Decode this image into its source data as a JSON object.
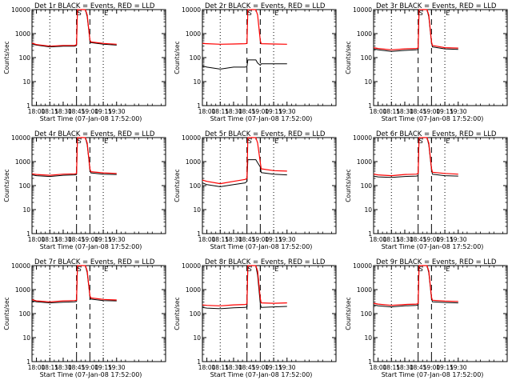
{
  "chart_data": [
    {
      "type": "line",
      "title": "Det 1r BLACK = Events, RED = LLD",
      "xlabel": "Start Time (07-Jan-08 17:52:00)",
      "ylabel": "Counts/sec",
      "ylog": true,
      "xlim": [
        -5,
        145
      ],
      "ylim": [
        1,
        10000
      ],
      "xticks": [
        0,
        15,
        30,
        45,
        60,
        75,
        90
      ],
      "xtick_labels": [
        "18:00",
        "18:15",
        "18:30",
        "18:45",
        "19:00",
        "19:15",
        "19:30"
      ],
      "yticks": [
        1,
        10,
        100,
        1000,
        10000
      ],
      "ytick_labels": [
        "1",
        "10",
        "100",
        "1000",
        "10000"
      ],
      "dotted_x": [
        15,
        75
      ],
      "dashed_x": [
        45,
        60
      ],
      "markers": [
        {
          "x": 45,
          "label": "S"
        },
        {
          "x": 75,
          "label": "E"
        }
      ],
      "x": [
        -5,
        0,
        15,
        30,
        43,
        45,
        46,
        55,
        57,
        60,
        61,
        75,
        90
      ],
      "series": [
        {
          "color": "#000000",
          "values": [
            370,
            330,
            280,
            300,
            300,
            320,
            10000,
            10000,
            5000,
            500,
            420,
            360,
            330
          ]
        },
        {
          "color": "#ff0000",
          "values": [
            400,
            350,
            300,
            320,
            320,
            350,
            10000,
            10000,
            6000,
            550,
            450,
            390,
            360
          ]
        }
      ]
    },
    {
      "type": "line",
      "title": "Det 2r BLACK = Events, RED = LLD",
      "xlabel": "Start Time (07-Jan-08 17:52:00)",
      "ylabel": "Counts/sec",
      "ylog": true,
      "xlim": [
        -5,
        145
      ],
      "ylim": [
        1,
        10000
      ],
      "xticks": [
        0,
        15,
        30,
        45,
        60,
        75,
        90
      ],
      "xtick_labels": [
        "18:00",
        "18:15",
        "18:30",
        "18:45",
        "19:00",
        "19:15",
        "19:30"
      ],
      "yticks": [
        1,
        10,
        100,
        1000,
        10000
      ],
      "ytick_labels": [
        "1",
        "10",
        "100",
        "1000",
        "10000"
      ],
      "dotted_x": [
        15,
        75
      ],
      "dashed_x": [
        45,
        60
      ],
      "markers": [
        {
          "x": 45,
          "label": "S"
        },
        {
          "x": 75,
          "label": "E"
        }
      ],
      "x": [
        -5,
        0,
        15,
        30,
        43,
        45,
        46,
        55,
        57,
        60,
        61,
        75,
        90
      ],
      "series": [
        {
          "color": "#000000",
          "values": [
            45,
            40,
            33,
            40,
            40,
            42,
            80,
            80,
            60,
            48,
            55,
            55,
            55
          ]
        },
        {
          "color": "#ff0000",
          "values": [
            390,
            380,
            360,
            370,
            380,
            390,
            10000,
            10000,
            6000,
            500,
            380,
            370,
            360
          ]
        }
      ]
    },
    {
      "type": "line",
      "title": "Det 3r BLACK = Events, RED = LLD",
      "xlabel": "Start Time (07-Jan-08 17:52:00)",
      "ylabel": "Counts/sec",
      "ylog": true,
      "xlim": [
        -5,
        145
      ],
      "ylim": [
        1,
        10000
      ],
      "xticks": [
        0,
        15,
        30,
        45,
        60,
        75,
        90
      ],
      "xtick_labels": [
        "18:00",
        "18:15",
        "18:30",
        "18:45",
        "19:00",
        "19:15",
        "19:30"
      ],
      "yticks": [
        1,
        10,
        100,
        1000,
        10000
      ],
      "ytick_labels": [
        "1",
        "10",
        "100",
        "1000",
        "10000"
      ],
      "dotted_x": [
        15,
        75
      ],
      "dashed_x": [
        45,
        60
      ],
      "markers": [
        {
          "x": 45,
          "label": "S"
        },
        {
          "x": 75,
          "label": "E"
        }
      ],
      "x": [
        -5,
        0,
        15,
        30,
        43,
        45,
        46,
        55,
        57,
        60,
        61,
        75,
        90
      ],
      "series": [
        {
          "color": "#000000",
          "values": [
            230,
            210,
            180,
            200,
            210,
            220,
            10000,
            10000,
            5000,
            400,
            280,
            230,
            220
          ]
        },
        {
          "color": "#ff0000",
          "values": [
            260,
            240,
            210,
            230,
            240,
            250,
            10000,
            10000,
            6000,
            450,
            320,
            260,
            250
          ]
        }
      ]
    },
    {
      "type": "line",
      "title": "Det 4r BLACK = Events, RED = LLD",
      "xlabel": "Start Time (07-Jan-08 17:52:00)",
      "ylabel": "Counts/sec",
      "ylog": true,
      "xlim": [
        -5,
        145
      ],
      "ylim": [
        1,
        10000
      ],
      "xticks": [
        0,
        15,
        30,
        45,
        60,
        75,
        90
      ],
      "xtick_labels": [
        "18:00",
        "18:15",
        "18:30",
        "18:45",
        "19:00",
        "19:15",
        "19:30"
      ],
      "yticks": [
        1,
        10,
        100,
        1000,
        10000
      ],
      "ytick_labels": [
        "1",
        "10",
        "100",
        "1000",
        "10000"
      ],
      "dotted_x": [
        15,
        75
      ],
      "dashed_x": [
        45,
        60
      ],
      "markers": [
        {
          "x": 45,
          "label": "S"
        },
        {
          "x": 75,
          "label": "E"
        }
      ],
      "x": [
        -5,
        0,
        15,
        30,
        43,
        45,
        46,
        55,
        57,
        60,
        61,
        75,
        90
      ],
      "series": [
        {
          "color": "#000000",
          "values": [
            280,
            260,
            240,
            270,
            280,
            290,
            10000,
            10000,
            5000,
            450,
            340,
            300,
            290
          ]
        },
        {
          "color": "#ff0000",
          "values": [
            310,
            290,
            270,
            300,
            310,
            320,
            10000,
            10000,
            6000,
            500,
            380,
            340,
            320
          ]
        }
      ]
    },
    {
      "type": "line",
      "title": "Det 5r BLACK = Events, RED = LLD",
      "xlabel": "Start Time (07-Jan-08 17:52:00)",
      "ylabel": "Counts/sec",
      "ylog": true,
      "xlim": [
        -5,
        145
      ],
      "ylim": [
        1,
        10000
      ],
      "xticks": [
        0,
        15,
        30,
        45,
        60,
        75,
        90
      ],
      "xtick_labels": [
        "18:00",
        "18:15",
        "18:30",
        "18:45",
        "19:00",
        "19:15",
        "19:30"
      ],
      "yticks": [
        1,
        10,
        100,
        1000,
        10000
      ],
      "ytick_labels": [
        "1",
        "10",
        "100",
        "1000",
        "10000"
      ],
      "dotted_x": [
        15,
        75
      ],
      "dashed_x": [
        45,
        60
      ],
      "markers": [
        {
          "x": 45,
          "label": "S"
        },
        {
          "x": 75,
          "label": "E"
        }
      ],
      "x": [
        -5,
        0,
        15,
        30,
        43,
        45,
        46,
        55,
        57,
        60,
        61,
        75,
        90
      ],
      "series": [
        {
          "color": "#000000",
          "values": [
            130,
            110,
            90,
            110,
            130,
            150,
            1200,
            1200,
            900,
            600,
            350,
            300,
            280
          ]
        },
        {
          "color": "#ff0000",
          "values": [
            170,
            150,
            120,
            150,
            180,
            200,
            10000,
            10000,
            6000,
            900,
            500,
            420,
            400
          ]
        }
      ]
    },
    {
      "type": "line",
      "title": "Det 6r BLACK = Events, RED = LLD",
      "xlabel": "Start Time (07-Jan-08 17:52:00)",
      "ylabel": "Counts/sec",
      "ylog": true,
      "xlim": [
        -5,
        145
      ],
      "ylim": [
        1,
        10000
      ],
      "xticks": [
        0,
        15,
        30,
        45,
        60,
        75,
        90
      ],
      "xtick_labels": [
        "18:00",
        "18:15",
        "18:30",
        "18:45",
        "19:00",
        "19:15",
        "19:30"
      ],
      "yticks": [
        1,
        10,
        100,
        1000,
        10000
      ],
      "ytick_labels": [
        "1",
        "10",
        "100",
        "1000",
        "10000"
      ],
      "dotted_x": [
        15,
        75
      ],
      "dashed_x": [
        45,
        60
      ],
      "markers": [
        {
          "x": 45,
          "label": "S"
        },
        {
          "x": 75,
          "label": "E"
        }
      ],
      "x": [
        -5,
        0,
        15,
        30,
        43,
        45,
        46,
        55,
        57,
        60,
        61,
        75,
        90
      ],
      "series": [
        {
          "color": "#000000",
          "values": [
            250,
            230,
            220,
            240,
            250,
            260,
            10000,
            10000,
            5000,
            450,
            300,
            260,
            250
          ]
        },
        {
          "color": "#ff0000",
          "values": [
            300,
            280,
            260,
            290,
            300,
            320,
            10000,
            10000,
            6000,
            520,
            360,
            320,
            300
          ]
        }
      ]
    },
    {
      "type": "line",
      "title": "Det 7r BLACK = Events, RED = LLD",
      "xlabel": "Start Time (07-Jan-08 17:52:00)",
      "ylabel": "Counts/sec",
      "ylog": true,
      "xlim": [
        -5,
        145
      ],
      "ylim": [
        1,
        10000
      ],
      "xticks": [
        0,
        15,
        30,
        45,
        60,
        75,
        90
      ],
      "xtick_labels": [
        "18:00",
        "18:15",
        "18:30",
        "18:45",
        "19:00",
        "19:15",
        "19:30"
      ],
      "yticks": [
        1,
        10,
        100,
        1000,
        10000
      ],
      "ytick_labels": [
        "1",
        "10",
        "100",
        "1000",
        "10000"
      ],
      "dotted_x": [
        15,
        75
      ],
      "dashed_x": [
        45,
        60
      ],
      "markers": [
        {
          "x": 45,
          "label": "S"
        },
        {
          "x": 75,
          "label": "E"
        }
      ],
      "x": [
        -5,
        0,
        15,
        30,
        43,
        45,
        46,
        55,
        57,
        60,
        61,
        75,
        90
      ],
      "series": [
        {
          "color": "#000000",
          "values": [
            340,
            310,
            280,
            300,
            310,
            320,
            10000,
            10000,
            5000,
            500,
            400,
            350,
            340
          ]
        },
        {
          "color": "#ff0000",
          "values": [
            380,
            340,
            310,
            340,
            350,
            360,
            10000,
            10000,
            6000,
            560,
            450,
            390,
            370
          ]
        }
      ]
    },
    {
      "type": "line",
      "title": "Det 8r BLACK = Events, RED = LLD",
      "xlabel": "Start Time (07-Jan-08 17:52:00)",
      "ylabel": "Counts/sec",
      "ylog": true,
      "xlim": [
        -5,
        145
      ],
      "ylim": [
        1,
        10000
      ],
      "xticks": [
        0,
        15,
        30,
        45,
        60,
        75,
        90
      ],
      "xtick_labels": [
        "18:00",
        "18:15",
        "18:30",
        "18:45",
        "19:00",
        "19:15",
        "19:30"
      ],
      "yticks": [
        1,
        10,
        100,
        1000,
        10000
      ],
      "ytick_labels": [
        "1",
        "10",
        "100",
        "1000",
        "10000"
      ],
      "dotted_x": [
        15,
        75
      ],
      "dashed_x": [
        45,
        60
      ],
      "markers": [
        {
          "x": 45,
          "label": "S"
        },
        {
          "x": 75,
          "label": "E"
        }
      ],
      "x": [
        -5,
        0,
        15,
        30,
        43,
        45,
        46,
        55,
        57,
        60,
        61,
        75,
        90
      ],
      "series": [
        {
          "color": "#000000",
          "values": [
            180,
            170,
            160,
            175,
            180,
            190,
            10000,
            10000,
            4000,
            250,
            180,
            190,
            200
          ]
        },
        {
          "color": "#ff0000",
          "values": [
            230,
            220,
            210,
            230,
            240,
            250,
            10000,
            10000,
            6000,
            420,
            280,
            270,
            280
          ]
        }
      ]
    },
    {
      "type": "line",
      "title": "Det 9r BLACK = Events, RED = LLD",
      "xlabel": "Start Time (07-Jan-08 17:52:00)",
      "ylabel": "Counts/sec",
      "ylog": true,
      "xlim": [
        -5,
        145
      ],
      "ylim": [
        1,
        10000
      ],
      "xticks": [
        0,
        15,
        30,
        45,
        60,
        75,
        90
      ],
      "xtick_labels": [
        "18:00",
        "18:15",
        "18:30",
        "18:45",
        "19:00",
        "19:15",
        "19:30"
      ],
      "yticks": [
        1,
        10,
        100,
        1000,
        10000
      ],
      "ytick_labels": [
        "1",
        "10",
        "100",
        "1000",
        "10000"
      ],
      "dotted_x": [
        15,
        75
      ],
      "dashed_x": [
        45,
        60
      ],
      "markers": [
        {
          "x": 45,
          "label": "S"
        },
        {
          "x": 75,
          "label": "E"
        }
      ],
      "x": [
        -5,
        0,
        15,
        30,
        43,
        45,
        46,
        55,
        57,
        60,
        61,
        75,
        90
      ],
      "series": [
        {
          "color": "#000000",
          "values": [
            230,
            210,
            190,
            210,
            220,
            230,
            10000,
            10000,
            5000,
            420,
            310,
            290,
            280
          ]
        },
        {
          "color": "#ff0000",
          "values": [
            270,
            250,
            220,
            240,
            250,
            260,
            10000,
            10000,
            6000,
            480,
            360,
            330,
            320
          ]
        }
      ]
    }
  ]
}
